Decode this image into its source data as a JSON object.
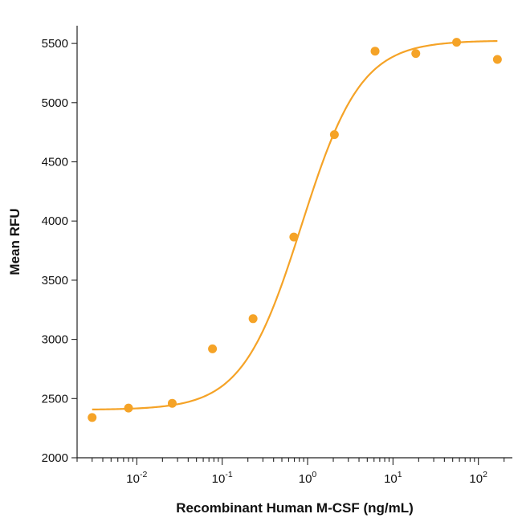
{
  "chart_data": {
    "type": "scatter",
    "title": "",
    "xlabel": "Recombinant Human M-CSF (ng/mL)",
    "ylabel": "Mean RFU",
    "x_scale": "log",
    "xlim": [
      0.002,
      250
    ],
    "ylim": [
      2000,
      5650
    ],
    "y_ticks": [
      2000,
      2500,
      3000,
      3500,
      4000,
      4500,
      5000,
      5500
    ],
    "x_ticks": [
      {
        "base": "10",
        "exp": "-2",
        "value": 0.01
      },
      {
        "base": "10",
        "exp": "-1",
        "value": 0.1
      },
      {
        "base": "10",
        "exp": "0",
        "value": 1
      },
      {
        "base": "10",
        "exp": "1",
        "value": 10
      },
      {
        "base": "10",
        "exp": "2",
        "value": 100
      }
    ],
    "grid": false,
    "legend": "none",
    "color": "#F5A327",
    "points": [
      {
        "x": 0.003,
        "y": 2340
      },
      {
        "x": 0.008,
        "y": 2420
      },
      {
        "x": 0.026,
        "y": 2460
      },
      {
        "x": 0.077,
        "y": 2920
      },
      {
        "x": 0.23,
        "y": 3175
      },
      {
        "x": 0.69,
        "y": 3865
      },
      {
        "x": 2.06,
        "y": 4730
      },
      {
        "x": 6.17,
        "y": 5435
      },
      {
        "x": 18.5,
        "y": 5415
      },
      {
        "x": 55.6,
        "y": 5510
      },
      {
        "x": 167,
        "y": 5365
      }
    ],
    "fit": {
      "model": "4PL",
      "bottom": 2405,
      "top": 5525,
      "ec50": 0.85,
      "hill": 1.25,
      "x_range": [
        0.003,
        167
      ]
    }
  }
}
